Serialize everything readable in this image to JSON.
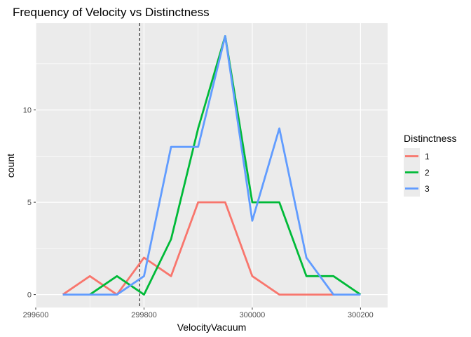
{
  "chart_data": {
    "type": "line",
    "title": "Frequency of Velocity vs Distinctness",
    "xlabel": "VelocityVacuum",
    "ylabel": "count",
    "xlim": [
      299600,
      300250
    ],
    "ylim": [
      -0.7,
      14.7
    ],
    "x_ticks": [
      299600,
      299800,
      300000,
      300200
    ],
    "x_tick_labels": [
      "299600",
      "299800",
      "300000",
      "300200"
    ],
    "y_ticks": [
      0,
      5,
      10
    ],
    "y_tick_labels": [
      "0",
      "5",
      "10"
    ],
    "grid": true,
    "reference_line": {
      "x": 299792,
      "style": "dashed"
    },
    "legend": {
      "title": "Distinctness",
      "position": "right"
    },
    "series": [
      {
        "name": "1",
        "color": "#F8766D",
        "x": [
          299650,
          299700,
          299750,
          299800,
          299850,
          299900,
          299950,
          300000,
          300050,
          300100,
          300150
        ],
        "y": [
          0,
          1,
          0,
          2,
          1,
          5,
          5,
          1,
          0,
          0,
          0
        ]
      },
      {
        "name": "2",
        "color": "#00BA38",
        "x": [
          299700,
          299750,
          299800,
          299850,
          299900,
          299950,
          300000,
          300050,
          300100,
          300150,
          300200
        ],
        "y": [
          0,
          1,
          0,
          3,
          9,
          14,
          5,
          5,
          1,
          1,
          0
        ]
      },
      {
        "name": "3",
        "color": "#619CFF",
        "x": [
          299650,
          299700,
          299750,
          299800,
          299850,
          299900,
          299950,
          300000,
          300050,
          300100,
          300150,
          300200
        ],
        "y": [
          0,
          0,
          0,
          1,
          8,
          8,
          14,
          4,
          9,
          2,
          0,
          0
        ]
      }
    ]
  }
}
